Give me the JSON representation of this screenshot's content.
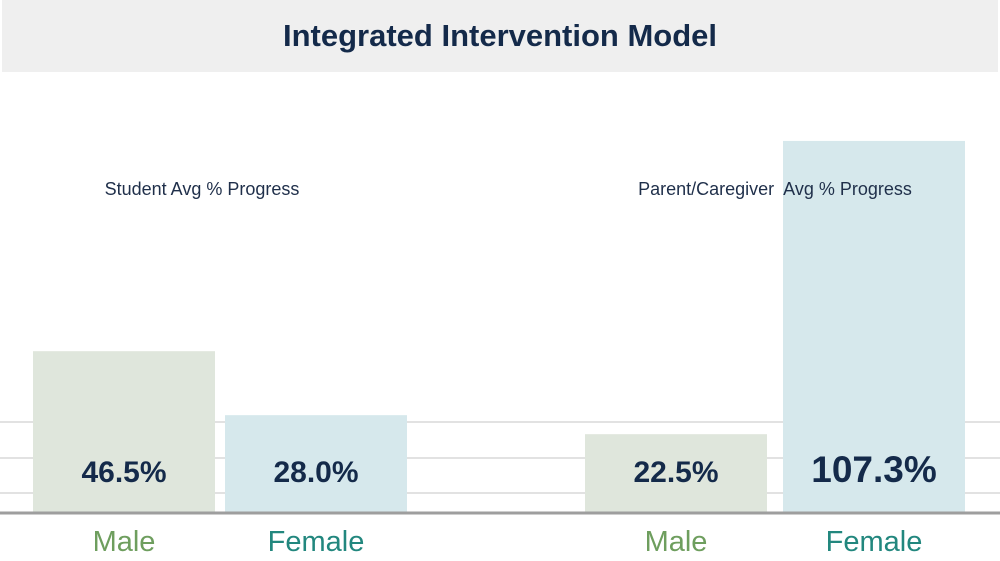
{
  "title": "Integrated Intervention Model",
  "colors": {
    "male_bar": "#dfe6dc",
    "female_bar": "#d6e8ec",
    "male_label": "#6e9e5e",
    "female_label": "#22877e",
    "value_text": "#142a4a",
    "gridline": "#d9d9d9",
    "baseline": "#9e9e9e"
  },
  "chart_data": [
    {
      "type": "bar",
      "title": "Student Avg % Progress",
      "categories": [
        "Male",
        "Female"
      ],
      "values": [
        46.5,
        28.0
      ],
      "value_labels": [
        "46.5%",
        "28.0%"
      ],
      "ylim": [
        0,
        120
      ]
    },
    {
      "type": "bar",
      "title": "Parent/Caregiver  Avg % Progress",
      "categories": [
        "Male",
        "Female"
      ],
      "values": [
        22.5,
        107.3
      ],
      "value_labels": [
        "22.5%",
        "107.3%"
      ],
      "ylim": [
        0,
        120
      ]
    }
  ]
}
